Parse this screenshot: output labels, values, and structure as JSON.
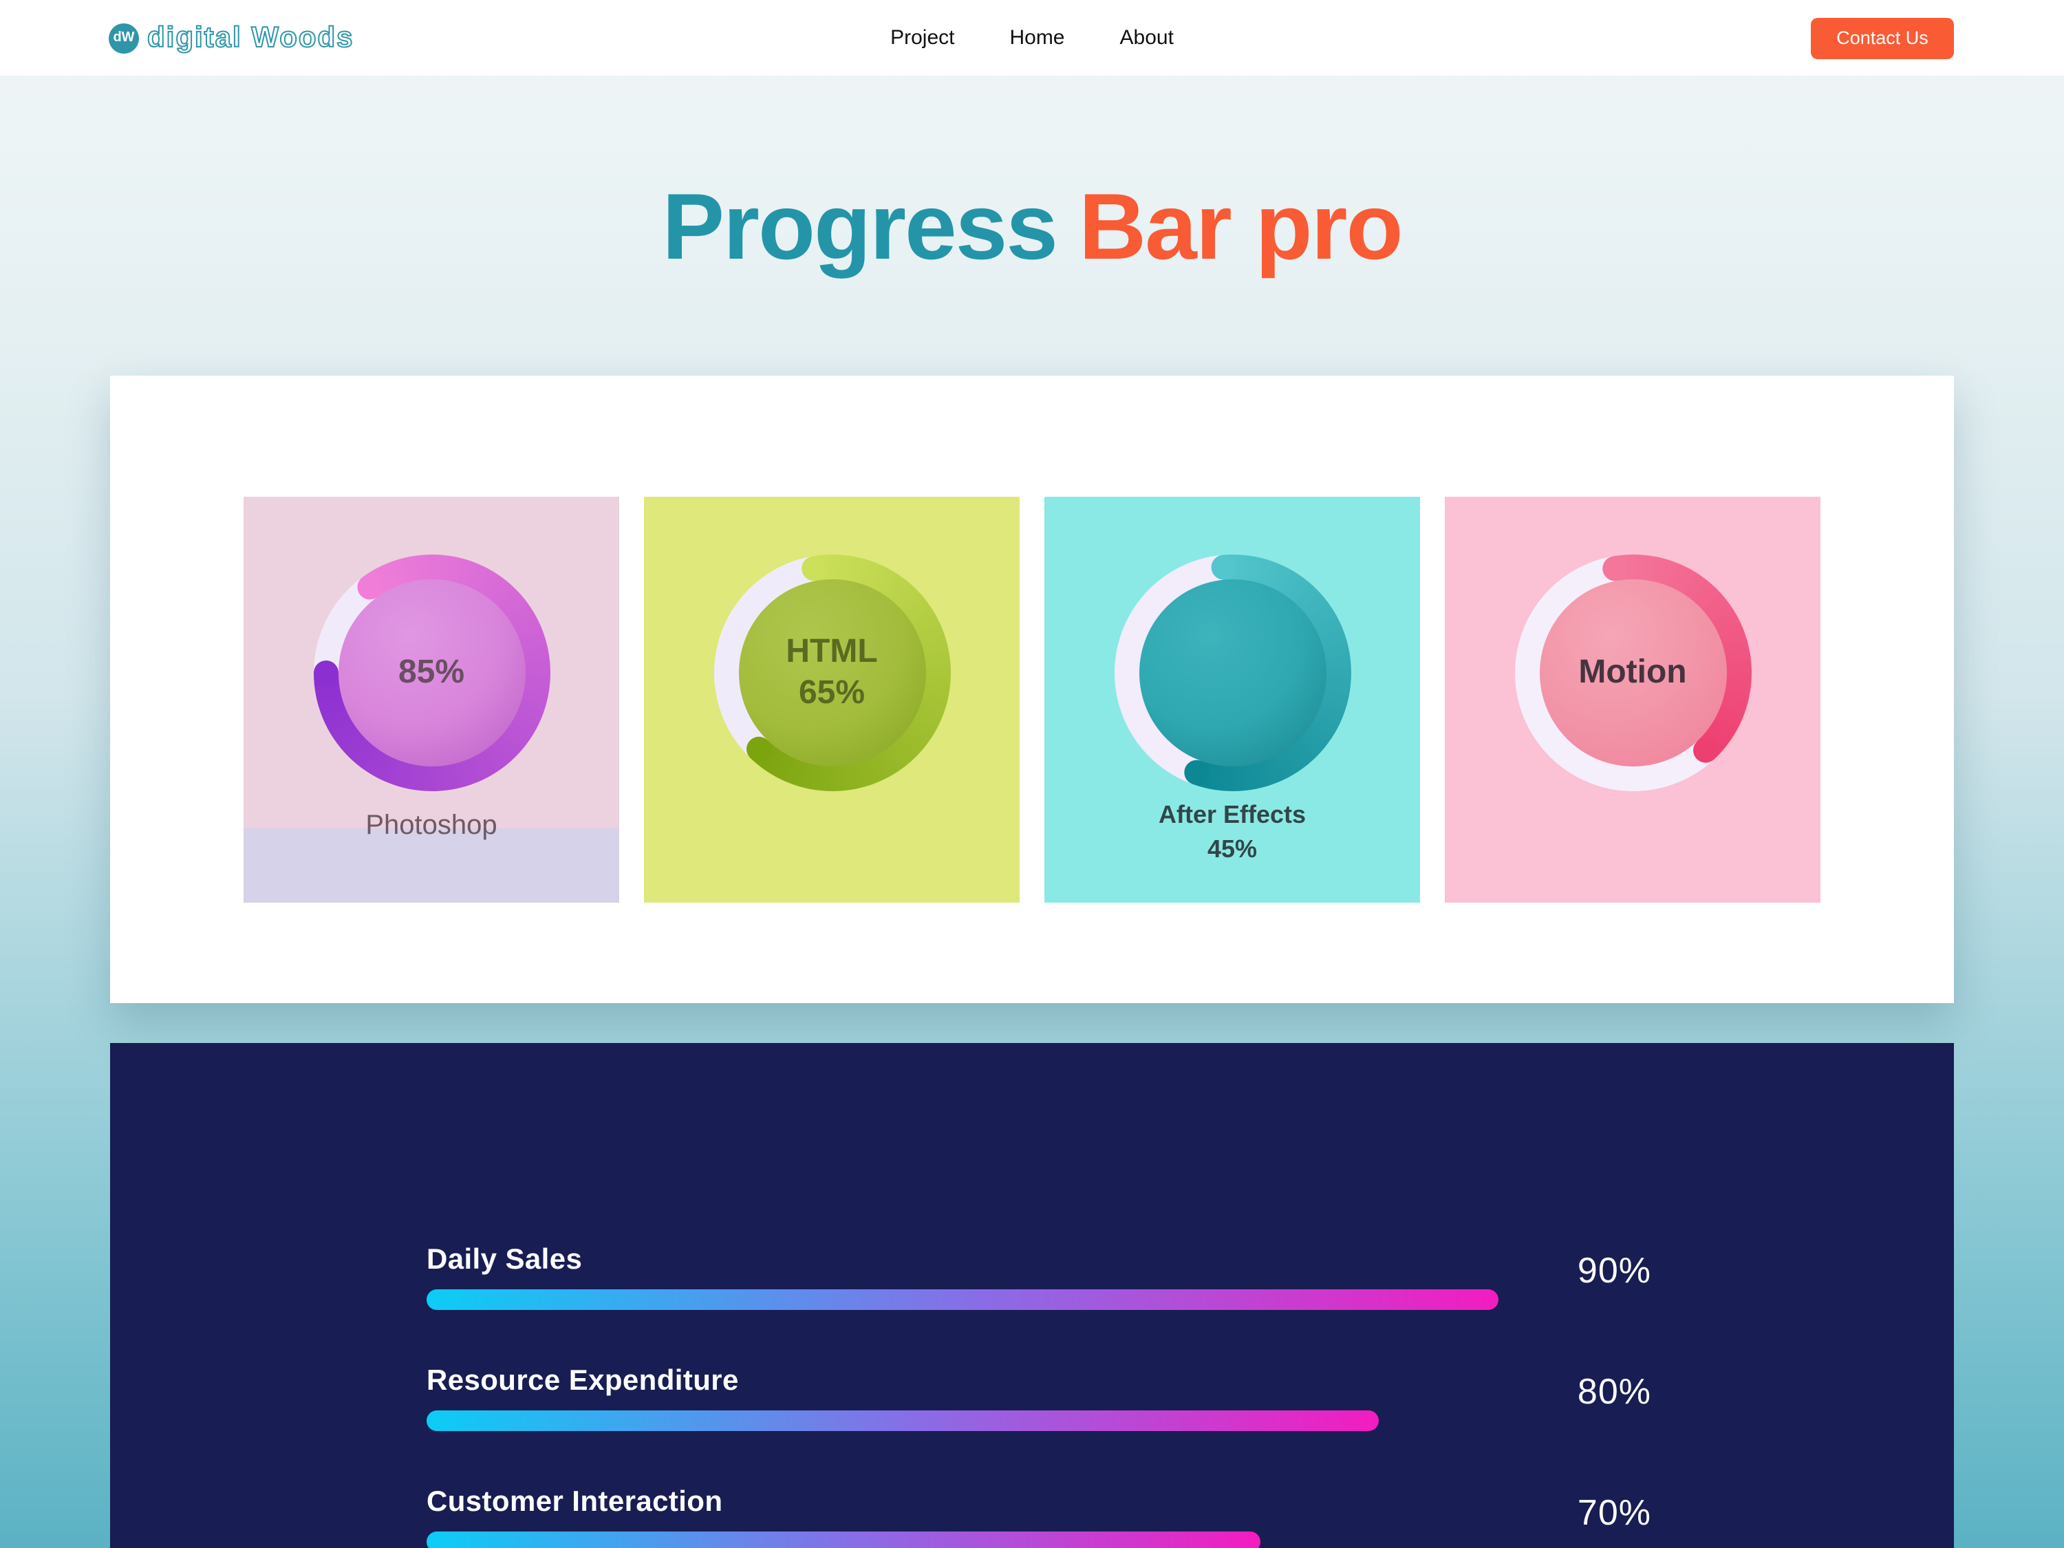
{
  "header": {
    "brand": "digital Woods",
    "brand_initials": "dW",
    "nav": [
      {
        "label": "Project"
      },
      {
        "label": "Home"
      },
      {
        "label": "About"
      }
    ],
    "contact_label": "Contact Us"
  },
  "hero": {
    "title_primary": "Progress",
    "title_accent": "Bar pro"
  },
  "colors": {
    "brand_teal": "#2E96A8",
    "title_teal": "#2495A8",
    "accent_orange": "#F95B35",
    "header_bg": "#FFFFFF",
    "panel_bg": "#FFFFFF",
    "page_gradient_top": "#F1F6F7",
    "page_gradient_bottom": "#5BB2C4"
  },
  "circle_cards": [
    {
      "name": "Photoshop",
      "percent": 85,
      "center_lines": [
        "85%"
      ],
      "below_lines": [
        "Photoshop"
      ],
      "bg": "#ECD2DE",
      "strip": "#D5D2E9",
      "track": "#F1EAFA",
      "arc_start": "#F07ED9",
      "arc_end": "#8B2FD1",
      "start_deg": -36,
      "sweep_deg": 306,
      "inner_light": "#E097E2",
      "inner": "#D884DB",
      "inner_dark": "#BA5FC7",
      "center_color": "#6A4E63",
      "below_color": "#6F5964"
    },
    {
      "name": "HTML",
      "percent": 65,
      "center_lines": [
        "HTML",
        "65%"
      ],
      "below_lines": [],
      "bg": "#DFE87A",
      "strip": null,
      "track": "#F0EBFA",
      "arc_start": "#CCE05A",
      "arc_end": "#7CA40F",
      "start_deg": -10,
      "sweep_deg": 234,
      "inner_light": "#AFC64D",
      "inner": "#A3BC3C",
      "inner_dark": "#85A421",
      "center_color": "#5A6A22",
      "below_color": "#5A6A22"
    },
    {
      "name": "After Effects",
      "percent": 45,
      "center_lines": [],
      "below_lines": [
        "After Effects",
        "45%"
      ],
      "bg": "#8BE9E5",
      "strip": null,
      "track": "#F2ECFB",
      "arc_start": "#53C5CC",
      "arc_end": "#0C8794",
      "start_deg": -5,
      "sweep_deg": 205,
      "inner_light": "#3DB3BC",
      "inner": "#2FA8B1",
      "inner_dark": "#19858F",
      "center_color": "#31464A",
      "below_color": "#31464A"
    },
    {
      "name": "Motion",
      "percent": null,
      "center_lines": [
        "Motion"
      ],
      "below_lines": [],
      "bg": "#FBC1D5",
      "strip": null,
      "track": "#F5EFFC",
      "arc_start": "#F4779B",
      "arc_end": "#EE3F71",
      "start_deg": -10,
      "sweep_deg": 147,
      "inner_light": "#F5A6B7",
      "inner": "#F294A7",
      "inner_dark": "#EF8099",
      "center_color": "#45343F",
      "below_color": "#45343F"
    }
  ],
  "progress_section": {
    "bg": "#181D53",
    "bar_from": "#0BCDF5",
    "bar_mid": "#8A6CE6",
    "bar_to": "#F31CC0",
    "rows": [
      {
        "label": "Daily Sales",
        "percent": 90,
        "percent_label": "90%"
      },
      {
        "label": "Resource Expenditure",
        "percent": 80,
        "percent_label": "80%"
      },
      {
        "label": "Customer Interaction",
        "percent": 70,
        "percent_label": "70%"
      }
    ]
  }
}
